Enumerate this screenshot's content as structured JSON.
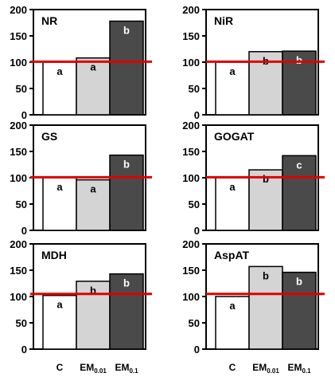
{
  "chart_data": [
    {
      "type": "bar",
      "title": "NR",
      "categories": [
        "C",
        "EM0.01",
        "EM0.1"
      ],
      "values": [
        100,
        108,
        178
      ],
      "labels": [
        "a",
        "a",
        "b"
      ],
      "ylim": [
        0,
        200
      ],
      "yticks": [
        0,
        50,
        100,
        150,
        200
      ],
      "reference_line": 101
    },
    {
      "type": "bar",
      "title": "NiR",
      "categories": [
        "C",
        "EM0.01",
        "EM0.1"
      ],
      "values": [
        100,
        120,
        121
      ],
      "labels": [
        "a",
        "b",
        "b"
      ],
      "ylim": [
        0,
        200
      ],
      "yticks": [
        0,
        50,
        100,
        150,
        200
      ],
      "reference_line": 101
    },
    {
      "type": "bar",
      "title": "GS",
      "categories": [
        "C",
        "EM0.01",
        "EM0.1"
      ],
      "values": [
        100,
        96,
        143
      ],
      "labels": [
        "a",
        "a",
        "b"
      ],
      "ylim": [
        0,
        200
      ],
      "yticks": [
        0,
        50,
        100,
        150,
        200
      ],
      "reference_line": 101
    },
    {
      "type": "bar",
      "title": "GOGAT",
      "categories": [
        "C",
        "EM0.01",
        "EM0.1"
      ],
      "values": [
        100,
        115,
        142
      ],
      "labels": [
        "a",
        "b",
        "c"
      ],
      "ylim": [
        0,
        200
      ],
      "yticks": [
        0,
        50,
        100,
        150,
        200
      ],
      "reference_line": 101
    },
    {
      "type": "bar",
      "title": "MDH",
      "categories": [
        "C",
        "EM0.01",
        "EM0.1"
      ],
      "values": [
        102,
        129,
        143
      ],
      "labels": [
        "a",
        "b",
        "b"
      ],
      "ylim": [
        0,
        200
      ],
      "yticks": [
        0,
        50,
        100,
        150,
        200
      ],
      "reference_line": 105
    },
    {
      "type": "bar",
      "title": "AspAT",
      "categories": [
        "C",
        "EM0.01",
        "EM0.1"
      ],
      "values": [
        100,
        157,
        146
      ],
      "labels": [
        "a",
        "b",
        "b"
      ],
      "ylim": [
        0,
        200
      ],
      "yticks": [
        0,
        50,
        100,
        150,
        200
      ],
      "reference_line": 105
    }
  ],
  "x_axis": {
    "left": [
      {
        "main": "C",
        "sub": ""
      },
      {
        "main": "EM",
        "sub": "0.01"
      },
      {
        "main": "EM",
        "sub": "0.1"
      }
    ],
    "right": [
      {
        "main": "C",
        "sub": ""
      },
      {
        "main": "EM",
        "sub": "0.01"
      },
      {
        "main": "EM",
        "sub": "0.1"
      }
    ]
  },
  "colors": {
    "bars": [
      "#ffffff",
      "#d4d4d4",
      "#4a4a4a"
    ],
    "label_fill": [
      "#000000",
      "#000000",
      "#ffffff"
    ],
    "reference_line": "#e00000",
    "axis": "#000000"
  }
}
